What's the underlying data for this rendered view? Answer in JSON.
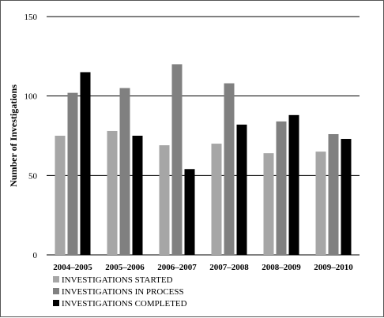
{
  "chart_data": {
    "type": "bar",
    "title": "",
    "xlabel": "",
    "ylabel": "Number of Investigations",
    "ylim": [
      0,
      150
    ],
    "yticks": [
      0,
      50,
      100,
      150
    ],
    "grid": true,
    "legend_position": "bottom-left",
    "categories": [
      "2004–2005",
      "2005–2006",
      "2006–2007",
      "2007–2008",
      "2008–2009",
      "2009–2010"
    ],
    "series": [
      {
        "name": "INVESTIGATIONS STARTED",
        "color": "#a6a6a6",
        "values": [
          75,
          78,
          69,
          70,
          64,
          65
        ]
      },
      {
        "name": "INVESTIGATIONS IN PROCESS",
        "color": "#808080",
        "values": [
          102,
          105,
          120,
          108,
          84,
          76
        ]
      },
      {
        "name": "INVESTIGATIONS COMPLETED",
        "color": "#000000",
        "values": [
          115,
          75,
          54,
          82,
          88,
          73
        ]
      }
    ]
  }
}
